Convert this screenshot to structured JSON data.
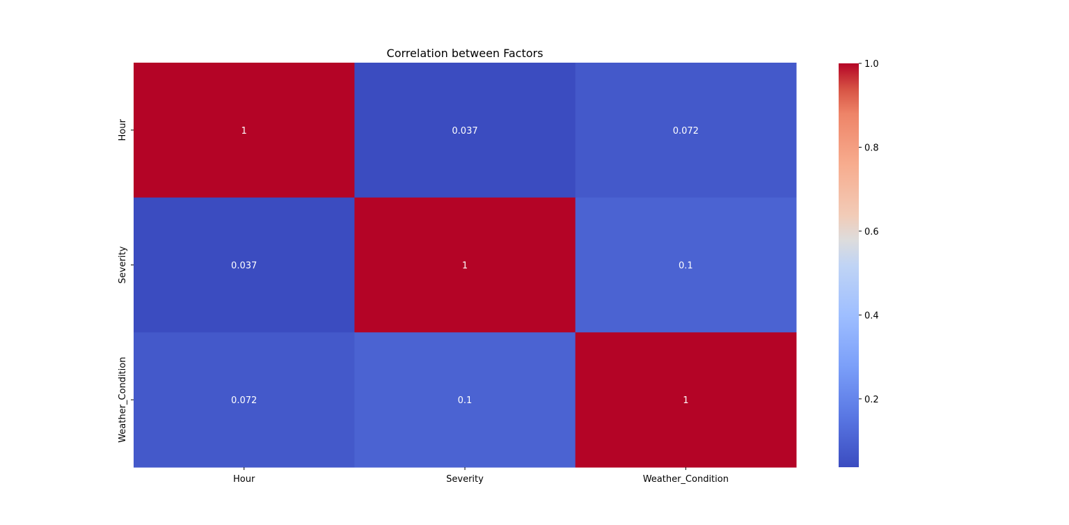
{
  "chart_data": {
    "type": "heatmap",
    "title": "Correlation between Factors",
    "xlabel": "",
    "ylabel": "",
    "x_categories": [
      "Hour",
      "Severity",
      "Weather_Condition"
    ],
    "y_categories": [
      "Hour",
      "Severity",
      "Weather_Condition"
    ],
    "matrix": [
      [
        1,
        0.037,
        0.072
      ],
      [
        0.037,
        1,
        0.1
      ],
      [
        0.072,
        0.1,
        1
      ]
    ],
    "annotations": [
      [
        "1",
        "0.037",
        "0.072"
      ],
      [
        "0.037",
        "1",
        "0.1"
      ],
      [
        "0.072",
        "0.1",
        "1"
      ]
    ],
    "colormap": "coolwarm",
    "colorbar": {
      "range": [
        0.037,
        1.0
      ],
      "ticks": [
        0.2,
        0.4,
        0.6,
        0.8,
        1.0
      ],
      "tick_labels": [
        "0.2",
        "0.4",
        "0.6",
        "0.8",
        "1.0"
      ]
    }
  }
}
